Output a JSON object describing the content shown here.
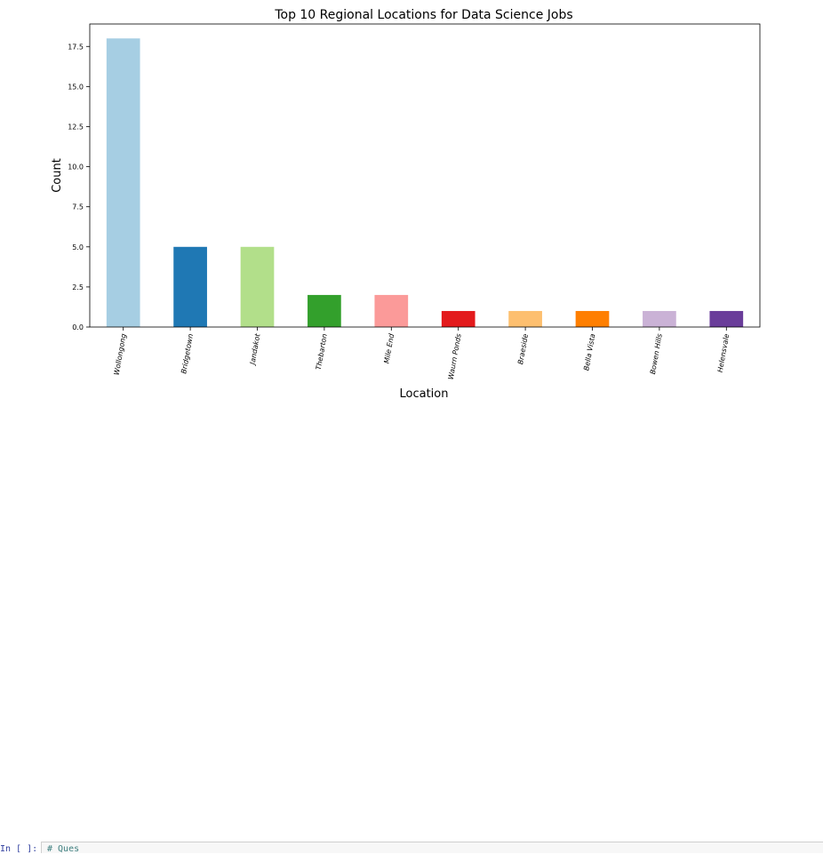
{
  "chart_data": {
    "type": "bar",
    "title": "Top 10 Regional Locations for Data Science Jobs",
    "xlabel": "Location",
    "ylabel": "Count",
    "categories": [
      "Wollongong",
      "Bridgetown",
      "Jandakot",
      "Thebarton",
      "Mile End",
      "Waurn Ponds",
      "Braeside",
      "Bella Vista",
      "Bowen Hills",
      "Helensvale"
    ],
    "values": [
      18,
      5,
      5,
      2,
      2,
      1,
      1,
      1,
      1,
      1
    ],
    "colors": [
      "#a6cee3",
      "#1f78b4",
      "#b2df8a",
      "#33a02c",
      "#fb9a99",
      "#e31a1c",
      "#fdbf6f",
      "#ff7f00",
      "#cab2d6",
      "#6a3d9a"
    ],
    "ylim": [
      0,
      18.9
    ],
    "yticks": [
      "0.0",
      "2.5",
      "5.0",
      "7.5",
      "10.0",
      "12.5",
      "15.0",
      "17.5"
    ],
    "ytick_values": [
      0,
      2.5,
      5,
      7.5,
      10,
      12.5,
      15,
      17.5
    ],
    "grid": false,
    "legend": "none"
  },
  "cell": {
    "prompt": "In [ ]:",
    "code": "# Ques"
  }
}
